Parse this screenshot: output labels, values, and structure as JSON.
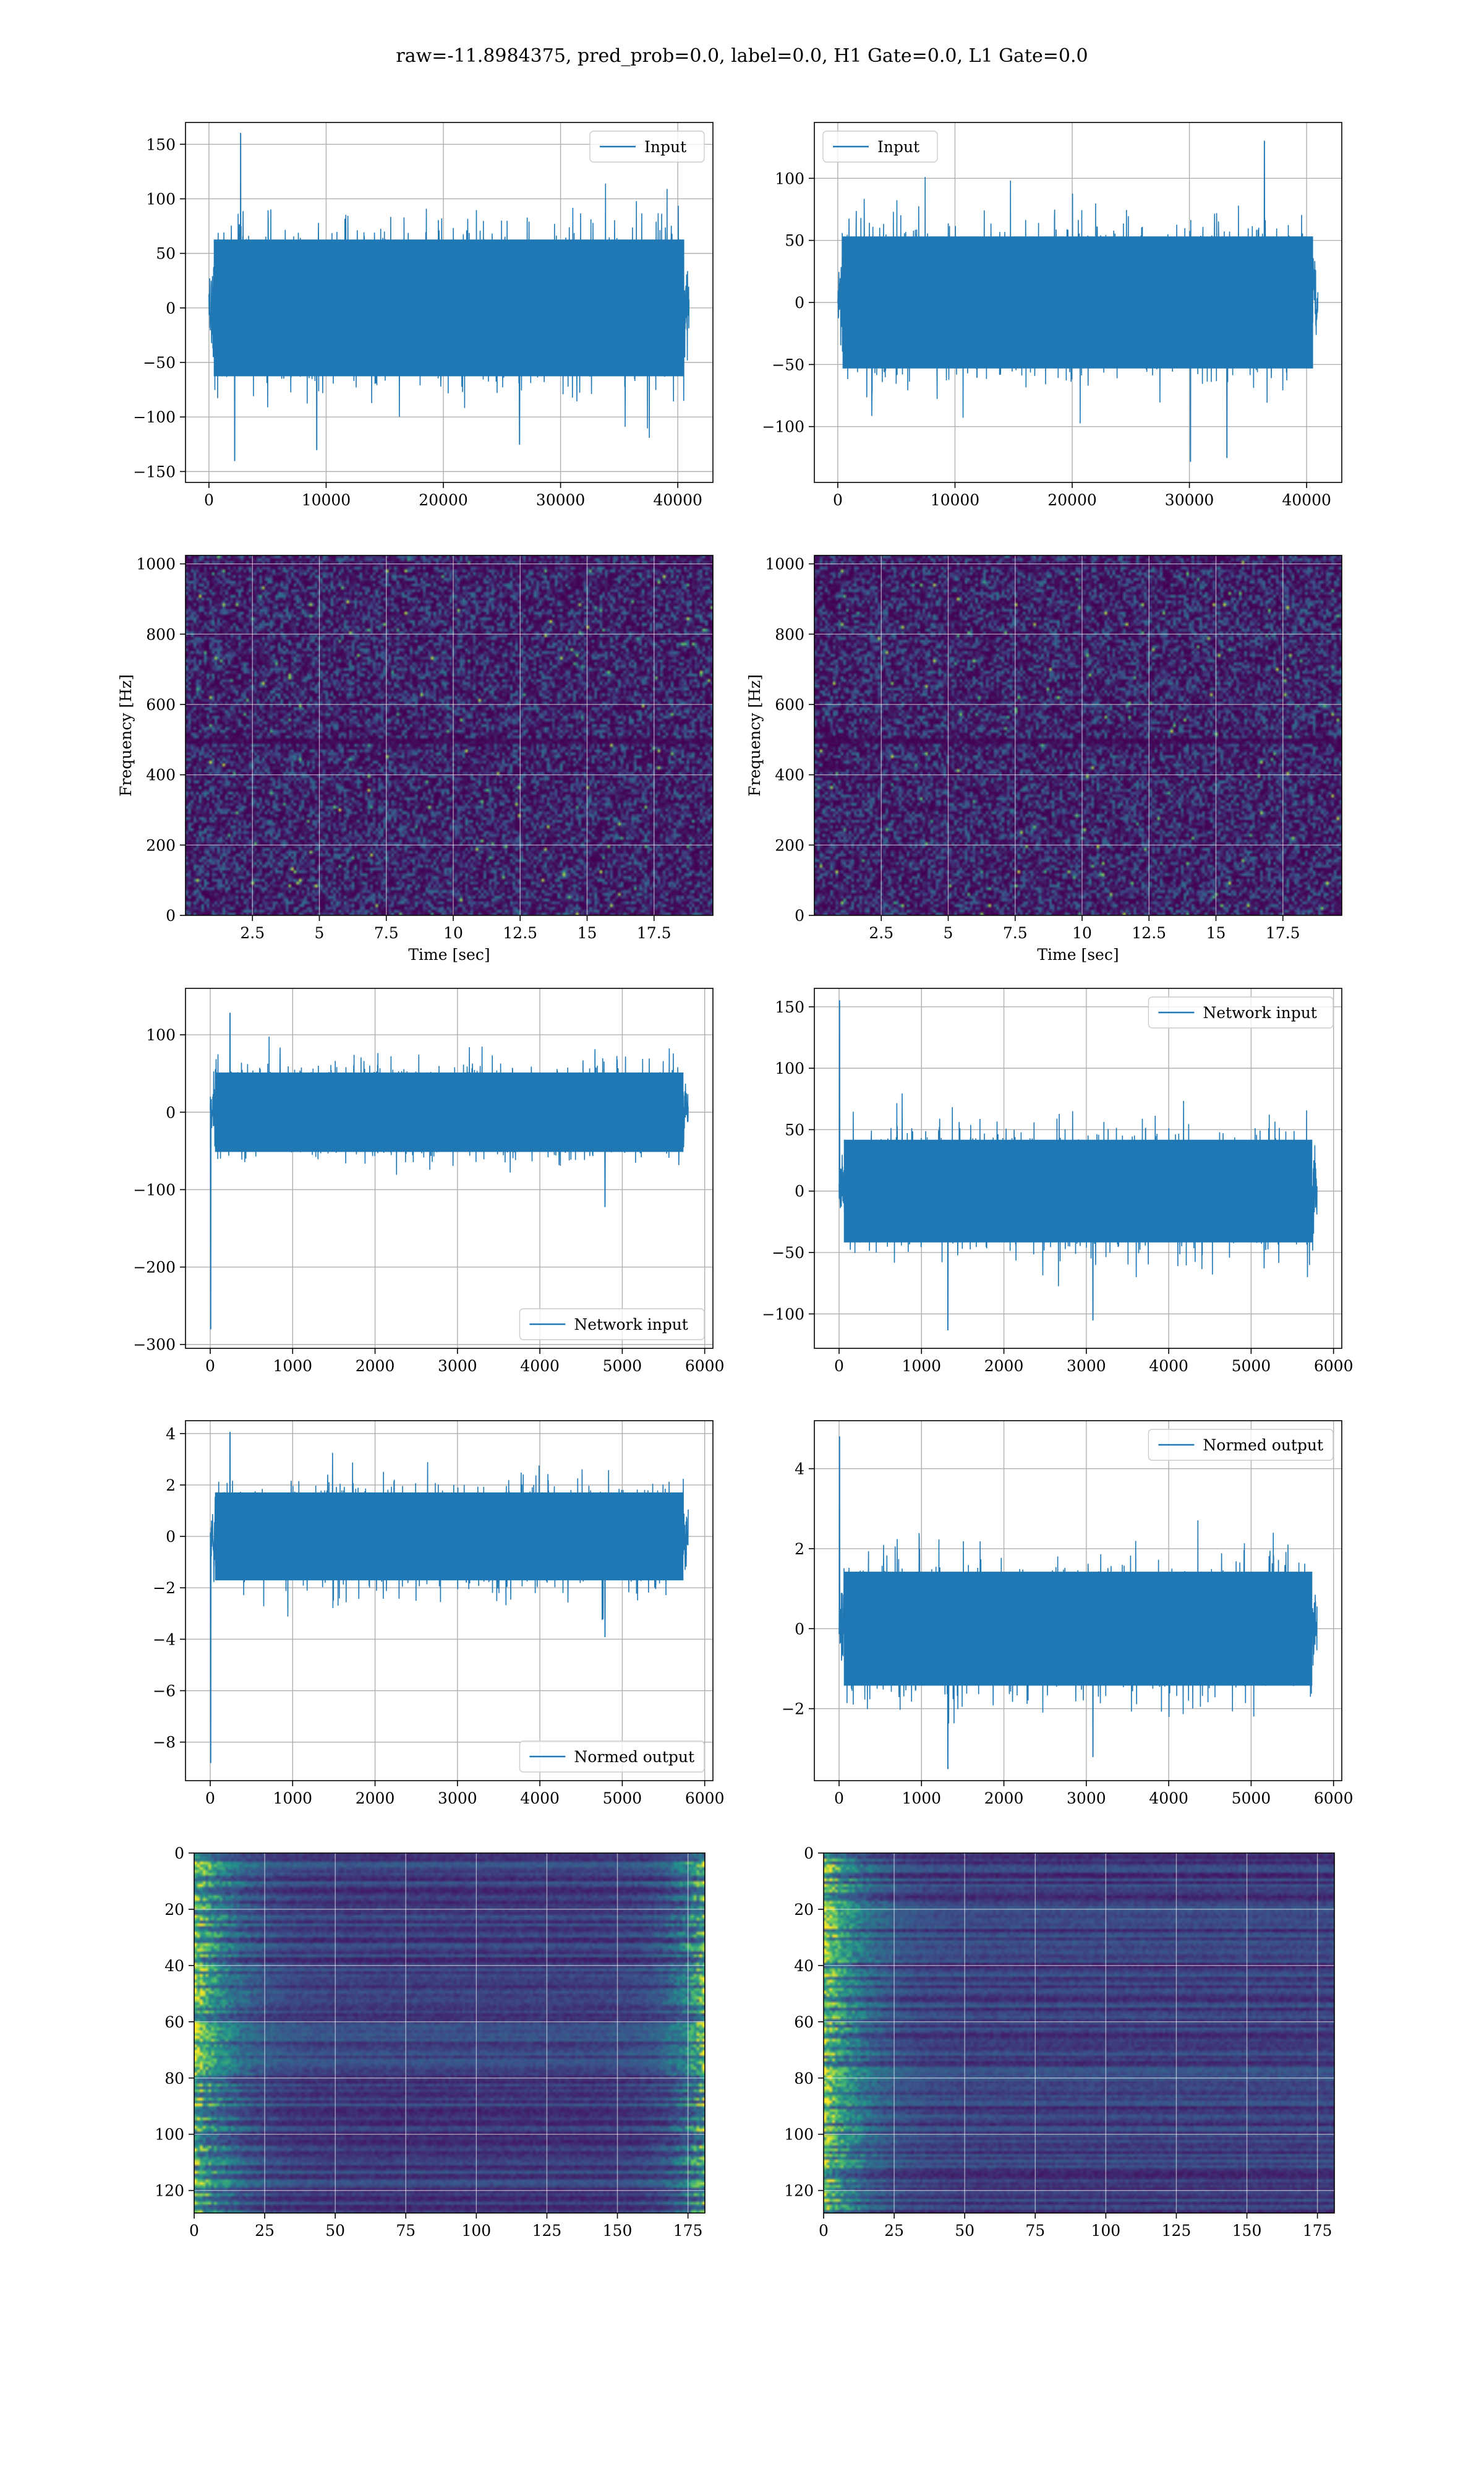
{
  "figure_title": "raw=-11.8984375, pred_prob=0.0, label=0.0, H1 Gate=0.0, L1 Gate=0.0",
  "colors": {
    "series": "#1f77b4",
    "grid": "#b0b0b0",
    "axes": "#000000"
  },
  "chart_data": [
    {
      "id": "h1-input",
      "type": "line",
      "legend": [
        "Input"
      ],
      "legend_loc": "upper right",
      "xlim": [
        -2000,
        43000
      ],
      "ylim": [
        -160,
        170
      ],
      "xticks": [
        0,
        10000,
        20000,
        30000,
        40000
      ],
      "yticks": [
        -150,
        -100,
        -50,
        0,
        50,
        100,
        150
      ],
      "x_range": [
        0,
        40960
      ],
      "noise_sd": 33,
      "spikes": [
        [
          2700,
          160
        ],
        [
          2200,
          -140
        ],
        [
          26500,
          -125
        ],
        [
          9200,
          -130
        ]
      ],
      "grid": true
    },
    {
      "id": "l1-input",
      "type": "line",
      "legend": [
        "Input"
      ],
      "legend_loc": "upper left",
      "xlim": [
        -2000,
        43000
      ],
      "ylim": [
        -145,
        145
      ],
      "xticks": [
        0,
        10000,
        20000,
        30000,
        40000
      ],
      "yticks": [
        -100,
        -50,
        0,
        50,
        100
      ],
      "x_range": [
        0,
        40960
      ],
      "noise_sd": 28,
      "spikes": [
        [
          36400,
          130
        ],
        [
          30100,
          -128
        ],
        [
          33200,
          -125
        ]
      ],
      "grid": true
    },
    {
      "id": "h1-spectrogram",
      "type": "heatmap",
      "xlabel": "Time [sec]",
      "ylabel": "Frequency [Hz]",
      "xlim": [
        0,
        19.7
      ],
      "ylim": [
        0,
        1024
      ],
      "xticks": [
        2.5,
        5.0,
        7.5,
        10.0,
        12.5,
        15.0,
        17.5
      ],
      "yticks": [
        0,
        200,
        400,
        600,
        800,
        1000
      ],
      "grid": true,
      "dark_bands_hz": [
        500,
        1000
      ]
    },
    {
      "id": "l1-spectrogram",
      "type": "heatmap",
      "xlabel": "Time [sec]",
      "ylabel": "Frequency [Hz]",
      "xlim": [
        0,
        19.7
      ],
      "ylim": [
        0,
        1024
      ],
      "xticks": [
        2.5,
        5.0,
        7.5,
        10.0,
        12.5,
        15.0,
        17.5
      ],
      "yticks": [
        0,
        200,
        400,
        600,
        800,
        1000
      ],
      "grid": true,
      "dark_bands_hz": [
        500,
        1000
      ]
    },
    {
      "id": "h1-network-input",
      "type": "line",
      "legend": [
        "Network input"
      ],
      "legend_loc": "lower right",
      "xlim": [
        -300,
        6100
      ],
      "ylim": [
        -305,
        160
      ],
      "xticks": [
        0,
        1000,
        2000,
        3000,
        4000,
        5000,
        6000
      ],
      "yticks": [
        -300,
        -200,
        -100,
        0,
        100
      ],
      "x_range": [
        0,
        5800
      ],
      "noise_sd": 27,
      "spikes": [
        [
          5,
          -280
        ],
        [
          240,
          128
        ],
        [
          4790,
          -122
        ]
      ],
      "grid": true
    },
    {
      "id": "l1-network-input",
      "type": "line",
      "legend": [
        "Network input"
      ],
      "legend_loc": "upper right",
      "xlim": [
        -300,
        6100
      ],
      "ylim": [
        -128,
        165
      ],
      "xticks": [
        0,
        1000,
        2000,
        3000,
        4000,
        5000,
        6000
      ],
      "yticks": [
        -100,
        -50,
        0,
        50,
        100,
        150
      ],
      "x_range": [
        0,
        5800
      ],
      "noise_sd": 22,
      "spikes": [
        [
          5,
          155
        ],
        [
          1320,
          -113
        ],
        [
          3080,
          -105
        ]
      ],
      "grid": true
    },
    {
      "id": "h1-normed-output",
      "type": "line",
      "legend": [
        "Normed output"
      ],
      "legend_loc": "lower right",
      "xlim": [
        -300,
        6100
      ],
      "ylim": [
        -9.5,
        4.5
      ],
      "xticks": [
        0,
        1000,
        2000,
        3000,
        4000,
        5000,
        6000
      ],
      "yticks": [
        -8,
        -6,
        -4,
        -2,
        0,
        2,
        4
      ],
      "x_range": [
        0,
        5800
      ],
      "noise_sd": 0.9,
      "spikes": [
        [
          5,
          -8.8
        ],
        [
          240,
          4.05
        ],
        [
          4790,
          -3.9
        ]
      ],
      "grid": true
    },
    {
      "id": "l1-normed-output",
      "type": "line",
      "legend": [
        "Normed output"
      ],
      "legend_loc": "upper right",
      "xlim": [
        -300,
        6100
      ],
      "ylim": [
        -3.8,
        5.2
      ],
      "xticks": [
        0,
        1000,
        2000,
        3000,
        4000,
        5000,
        6000
      ],
      "yticks": [
        -2,
        0,
        2,
        4
      ],
      "x_range": [
        0,
        5800
      ],
      "noise_sd": 0.75,
      "spikes": [
        [
          5,
          4.8
        ],
        [
          1320,
          -3.5
        ],
        [
          3080,
          -3.2
        ]
      ],
      "grid": true
    },
    {
      "id": "h1-feature-map",
      "type": "heatmap",
      "xlim": [
        0,
        181
      ],
      "ylim": [
        128,
        0
      ],
      "xticks": [
        0,
        25,
        50,
        75,
        100,
        125,
        150,
        175
      ],
      "yticks": [
        0,
        20,
        40,
        60,
        80,
        100,
        120
      ],
      "grid": true,
      "bright_edges": "both"
    },
    {
      "id": "l1-feature-map",
      "type": "heatmap",
      "xlim": [
        0,
        181
      ],
      "ylim": [
        128,
        0
      ],
      "xticks": [
        0,
        25,
        50,
        75,
        100,
        125,
        150,
        175
      ],
      "yticks": [
        0,
        20,
        40,
        60,
        80,
        100,
        120
      ],
      "grid": true,
      "bright_edges": "left"
    }
  ]
}
